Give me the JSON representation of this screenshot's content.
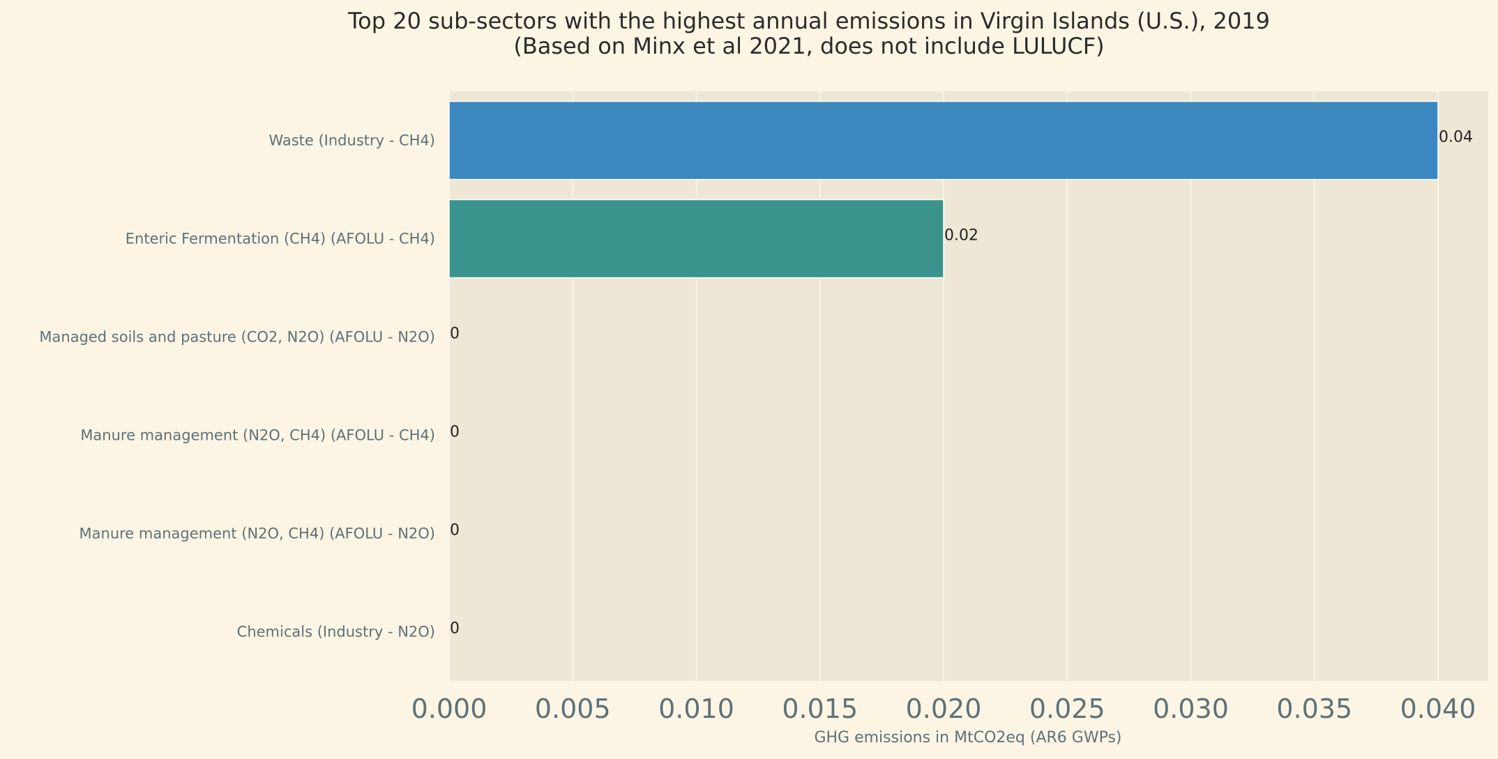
{
  "chart_data": {
    "type": "bar",
    "orientation": "horizontal",
    "title": "Top 20 sub-sectors with the highest annual emissions in Virgin Islands (U.S.), 2019",
    "subtitle": "(Based on Minx et al 2021, does not include LULUCF)",
    "xlabel": "GHG emissions in MtCO2eq (AR6 GWPs)",
    "ylabel": "",
    "xlim": [
      0,
      0.042
    ],
    "xticks": [
      0.0,
      0.005,
      0.01,
      0.015,
      0.02,
      0.025,
      0.03,
      0.035,
      0.04
    ],
    "xtick_labels": [
      "0.000",
      "0.005",
      "0.010",
      "0.015",
      "0.020",
      "0.025",
      "0.030",
      "0.035",
      "0.040"
    ],
    "grid": true,
    "categories": [
      "Waste (Industry - CH4)",
      "Enteric Fermentation (CH4) (AFOLU - CH4)",
      "Managed soils and pasture (CO2, N2O) (AFOLU - N2O)",
      "Manure management (N2O, CH4) (AFOLU - CH4)",
      "Manure management (N2O, CH4) (AFOLU - N2O)",
      "Chemicals (Industry - N2O)"
    ],
    "values": [
      0.04,
      0.02,
      0,
      0,
      0,
      0
    ],
    "data_labels": [
      "0.04",
      "0.02",
      "0",
      "0",
      "0",
      "0"
    ],
    "bar_colors": [
      "#3b88be",
      "#3a938c",
      "#3a938c",
      "#3a938c",
      "#3a938c",
      "#3a938c"
    ]
  },
  "colors": {
    "page_background": "#fcf5e4",
    "plot_background": "#efe7d5",
    "grid": "#fbf8f0",
    "text_muted": "#5d7178",
    "text_dark": "#2b2b2b"
  }
}
